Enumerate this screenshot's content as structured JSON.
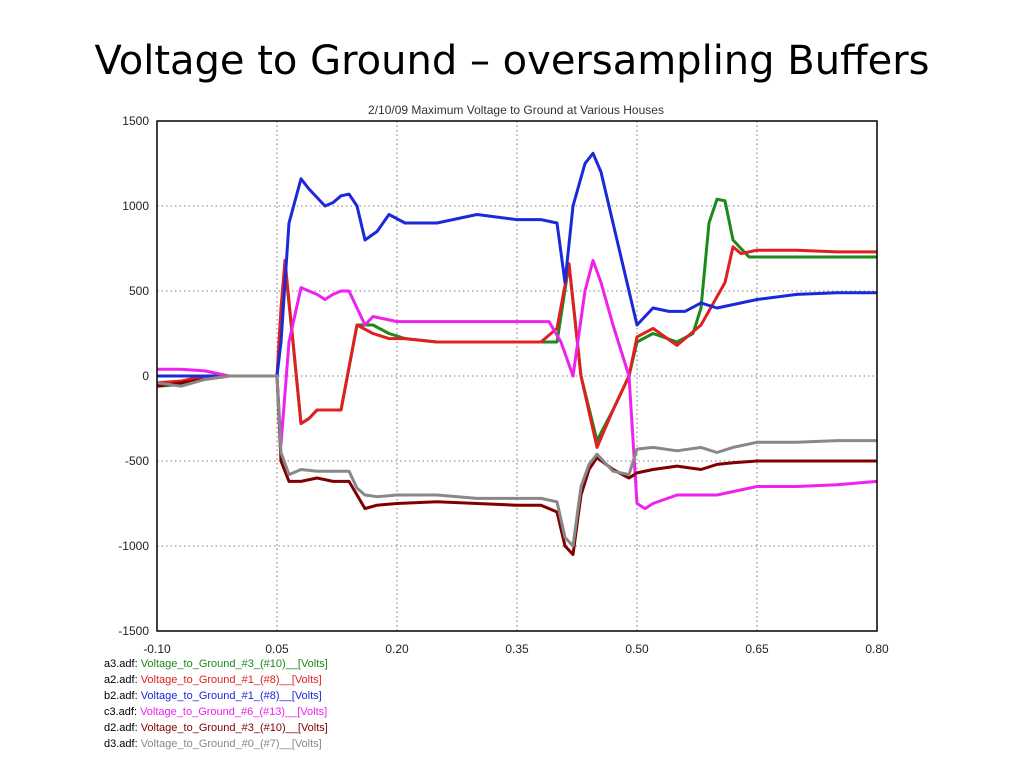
{
  "slide": {
    "title": "Voltage to Ground – oversampling Buffers"
  },
  "chart_data": {
    "type": "line",
    "title": "2/10/09  Maximum Voltage to Ground at Various Houses",
    "xlabel": "",
    "ylabel": "",
    "xlim": [
      -0.1,
      0.8
    ],
    "ylim": [
      -1500,
      1500
    ],
    "x_ticks": [
      -0.1,
      0.05,
      0.2,
      0.35,
      0.5,
      0.65,
      0.8
    ],
    "x_tick_labels": [
      "-0.10",
      "0.05",
      "0.20",
      "0.35",
      "0.50",
      "0.65",
      "0.80"
    ],
    "y_ticks": [
      1500,
      1000,
      500,
      0,
      -500,
      -1000,
      -1500
    ],
    "y_tick_labels": [
      "1500",
      "1000",
      "500",
      "0",
      "-500",
      "-1000",
      "-1500"
    ],
    "grid": true,
    "legend_placement": "bottom-left",
    "series": [
      {
        "file": "a3.adf:",
        "name": "Voltage_to_Ground_#3_(#10)__[Volts]",
        "color": "#1a8a1a",
        "x": [
          -0.1,
          -0.07,
          -0.04,
          -0.01,
          0.02,
          0.05,
          0.055,
          0.06,
          0.07,
          0.08,
          0.09,
          0.1,
          0.11,
          0.13,
          0.15,
          0.17,
          0.19,
          0.21,
          0.25,
          0.3,
          0.35,
          0.38,
          0.4,
          0.415,
          0.43,
          0.45,
          0.47,
          0.49,
          0.5,
          0.52,
          0.55,
          0.57,
          0.58,
          0.59,
          0.6,
          0.61,
          0.62,
          0.64,
          0.65,
          0.7,
          0.75,
          0.8
        ],
        "y": [
          -60,
          -50,
          0,
          0,
          0,
          0,
          300,
          650,
          200,
          -280,
          -250,
          -200,
          -200,
          -200,
          300,
          300,
          250,
          220,
          200,
          200,
          200,
          200,
          200,
          660,
          0,
          -380,
          -200,
          0,
          200,
          250,
          200,
          250,
          400,
          900,
          1040,
          1030,
          800,
          700,
          700,
          700,
          700,
          700
        ]
      },
      {
        "file": "a2.adf:",
        "name": "Voltage_to_Ground_#1_(#8)__[Volts]",
        "color": "#e02020",
        "x": [
          -0.1,
          -0.07,
          -0.04,
          -0.01,
          0.02,
          0.05,
          0.055,
          0.06,
          0.07,
          0.08,
          0.09,
          0.1,
          0.11,
          0.13,
          0.15,
          0.17,
          0.19,
          0.21,
          0.25,
          0.3,
          0.35,
          0.38,
          0.4,
          0.415,
          0.43,
          0.45,
          0.47,
          0.49,
          0.5,
          0.52,
          0.55,
          0.58,
          0.61,
          0.62,
          0.63,
          0.65,
          0.7,
          0.75,
          0.8
        ],
        "y": [
          -40,
          -30,
          0,
          0,
          0,
          0,
          400,
          680,
          200,
          -280,
          -250,
          -200,
          -200,
          -200,
          300,
          250,
          220,
          220,
          200,
          200,
          200,
          200,
          280,
          660,
          0,
          -420,
          -200,
          0,
          230,
          280,
          180,
          300,
          550,
          760,
          720,
          740,
          740,
          730,
          730
        ]
      },
      {
        "file": "b2.adf:",
        "name": "Voltage_to_Ground_#1_(#8)__[Volts]",
        "color": "#1a2ad8",
        "x": [
          -0.1,
          -0.07,
          -0.04,
          -0.01,
          0.02,
          0.05,
          0.055,
          0.065,
          0.08,
          0.09,
          0.1,
          0.11,
          0.12,
          0.13,
          0.14,
          0.15,
          0.16,
          0.175,
          0.19,
          0.21,
          0.25,
          0.3,
          0.35,
          0.38,
          0.4,
          0.41,
          0.42,
          0.435,
          0.445,
          0.455,
          0.47,
          0.49,
          0.5,
          0.52,
          0.54,
          0.56,
          0.58,
          0.6,
          0.62,
          0.65,
          0.7,
          0.75,
          0.8
        ],
        "y": [
          0,
          0,
          0,
          0,
          0,
          0,
          200,
          900,
          1160,
          1100,
          1050,
          1000,
          1020,
          1060,
          1070,
          1000,
          800,
          850,
          950,
          900,
          900,
          950,
          920,
          920,
          900,
          550,
          1000,
          1250,
          1310,
          1200,
          900,
          500,
          300,
          400,
          380,
          380,
          430,
          400,
          420,
          450,
          480,
          490,
          490
        ]
      },
      {
        "file": "c3.adf:",
        "name": "Voltage_to_Ground_#6_(#13)__[Volts]",
        "color": "#ee22ee",
        "x": [
          -0.1,
          -0.07,
          -0.04,
          -0.01,
          0.02,
          0.05,
          0.055,
          0.065,
          0.08,
          0.09,
          0.1,
          0.11,
          0.12,
          0.13,
          0.14,
          0.15,
          0.16,
          0.17,
          0.2,
          0.25,
          0.3,
          0.35,
          0.39,
          0.405,
          0.42,
          0.435,
          0.445,
          0.455,
          0.47,
          0.49,
          0.5,
          0.51,
          0.52,
          0.55,
          0.6,
          0.65,
          0.7,
          0.75,
          0.8
        ],
        "y": [
          40,
          40,
          30,
          0,
          0,
          0,
          -400,
          200,
          520,
          500,
          480,
          450,
          480,
          500,
          500,
          400,
          300,
          350,
          320,
          320,
          320,
          320,
          320,
          200,
          0,
          500,
          680,
          550,
          300,
          0,
          -750,
          -780,
          -750,
          -700,
          -700,
          -650,
          -650,
          -640,
          -620
        ]
      },
      {
        "file": "d2.adf:",
        "name": "Voltage_to_Ground_#3_(#10)__[Volts]",
        "color": "#800000",
        "x": [
          -0.1,
          -0.07,
          -0.04,
          -0.01,
          0.02,
          0.05,
          0.055,
          0.065,
          0.08,
          0.1,
          0.12,
          0.14,
          0.15,
          0.16,
          0.175,
          0.2,
          0.25,
          0.3,
          0.35,
          0.38,
          0.4,
          0.41,
          0.42,
          0.43,
          0.44,
          0.45,
          0.47,
          0.49,
          0.5,
          0.52,
          0.55,
          0.58,
          0.6,
          0.62,
          0.65,
          0.7,
          0.75,
          0.8
        ],
        "y": [
          -60,
          -40,
          -20,
          0,
          0,
          0,
          -500,
          -620,
          -620,
          -600,
          -620,
          -620,
          -700,
          -780,
          -760,
          -750,
          -740,
          -750,
          -760,
          -760,
          -800,
          -1000,
          -1050,
          -700,
          -550,
          -480,
          -550,
          -600,
          -570,
          -550,
          -530,
          -550,
          -520,
          -510,
          -500,
          -500,
          -500,
          -500
        ]
      },
      {
        "file": "d3.adf:",
        "name": "Voltage_to_Ground_#0_(#7)__[Volts]",
        "color": "#888888",
        "x": [
          -0.1,
          -0.07,
          -0.04,
          -0.01,
          0.02,
          0.05,
          0.055,
          0.065,
          0.08,
          0.1,
          0.12,
          0.14,
          0.15,
          0.16,
          0.175,
          0.2,
          0.25,
          0.3,
          0.35,
          0.38,
          0.4,
          0.41,
          0.42,
          0.43,
          0.44,
          0.45,
          0.47,
          0.49,
          0.5,
          0.52,
          0.55,
          0.58,
          0.6,
          0.62,
          0.65,
          0.7,
          0.75,
          0.8
        ],
        "y": [
          -40,
          -60,
          -20,
          0,
          0,
          0,
          -450,
          -580,
          -550,
          -560,
          -560,
          -560,
          -660,
          -700,
          -710,
          -700,
          -700,
          -720,
          -720,
          -720,
          -740,
          -950,
          -1000,
          -650,
          -520,
          -460,
          -560,
          -580,
          -430,
          -420,
          -440,
          -420,
          -450,
          -420,
          -390,
          -390,
          -380,
          -380
        ]
      }
    ]
  }
}
